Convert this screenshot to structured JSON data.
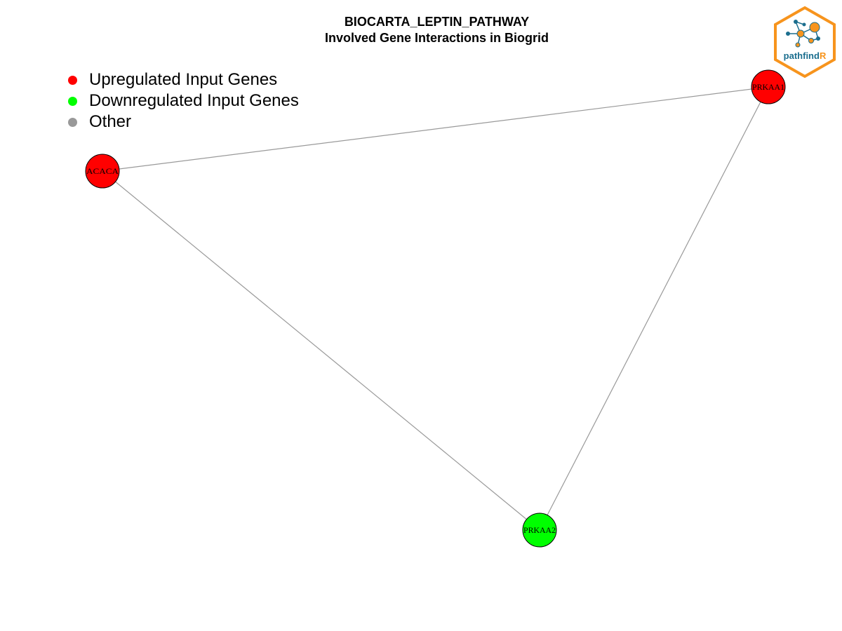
{
  "title": {
    "line1": "BIOCARTA_LEPTIN_PATHWAY",
    "line2": "Involved Gene Interactions in Biogrid"
  },
  "legend": [
    {
      "label": "Upregulated Input Genes",
      "color": "#ff0000"
    },
    {
      "label": "Downregulated Input Genes",
      "color": "#00ff00"
    },
    {
      "label": "Other",
      "color": "#999999"
    }
  ],
  "network": {
    "edge_color": "#999999",
    "nodes": [
      {
        "id": "ACACA",
        "label": "ACACA",
        "regulation": "up",
        "color": "#ff0000"
      },
      {
        "id": "PRKAA1",
        "label": "PRKAA1",
        "regulation": "up",
        "color": "#ff0000"
      },
      {
        "id": "PRKAA2",
        "label": "PRKAA2",
        "regulation": "down",
        "color": "#00ff00"
      }
    ],
    "edges": [
      {
        "from": "ACACA",
        "to": "PRKAA1"
      },
      {
        "from": "ACACA",
        "to": "PRKAA2"
      },
      {
        "from": "PRKAA1",
        "to": "PRKAA2"
      }
    ]
  },
  "logo": {
    "text_main": "pathfind",
    "text_accent": "R",
    "hex_color": "#f7941d",
    "text_color": "#1b6e8e",
    "accent_color": "#f7941d"
  }
}
